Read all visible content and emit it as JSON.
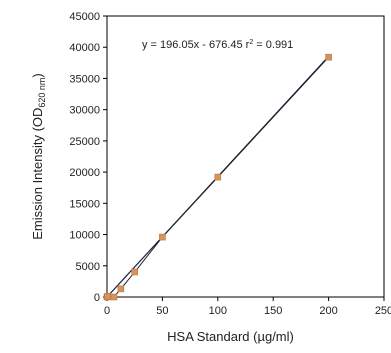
{
  "chart_data": {
    "type": "scatter",
    "title": "",
    "xlabel": "HSA Standard (µg/ml)",
    "ylabel_prefix": "Emission Intensity (OD",
    "ylabel_subscript": "620 nm",
    "ylabel_suffix": ")",
    "xlim": [
      0,
      250
    ],
    "ylim": [
      0,
      45000
    ],
    "x_ticks": [
      0,
      50,
      100,
      150,
      200,
      250
    ],
    "y_ticks": [
      0,
      5000,
      10000,
      15000,
      20000,
      25000,
      30000,
      35000,
      40000,
      45000
    ],
    "x_tick_labels": [
      "0",
      "50",
      "100",
      "150",
      "200",
      "250"
    ],
    "y_tick_labels": [
      "0",
      "5000",
      "10000",
      "15000",
      "20000",
      "25000",
      "30000",
      "35000",
      "40000",
      "45000"
    ],
    "grid": false,
    "series": [
      {
        "x": [
          0,
          0.5,
          6.25,
          12.5,
          25,
          50,
          100,
          200
        ],
        "y": [
          0,
          100,
          0,
          1300,
          4000,
          9600,
          19200,
          38400
        ]
      }
    ],
    "fit": {
      "equation_prefix": "y = 196.05x - 676.45 r",
      "equation_sup": "2",
      "equation_suffix": " = 0.991",
      "slope": 196.05,
      "intercept": -676.45,
      "x_range": [
        0,
        200
      ]
    },
    "colors": {
      "marker": "#d4955a",
      "marker_edge": "#b87840",
      "fit_line": "#1e1b4b",
      "connect_line": "#222222",
      "axis": "#000000"
    }
  }
}
